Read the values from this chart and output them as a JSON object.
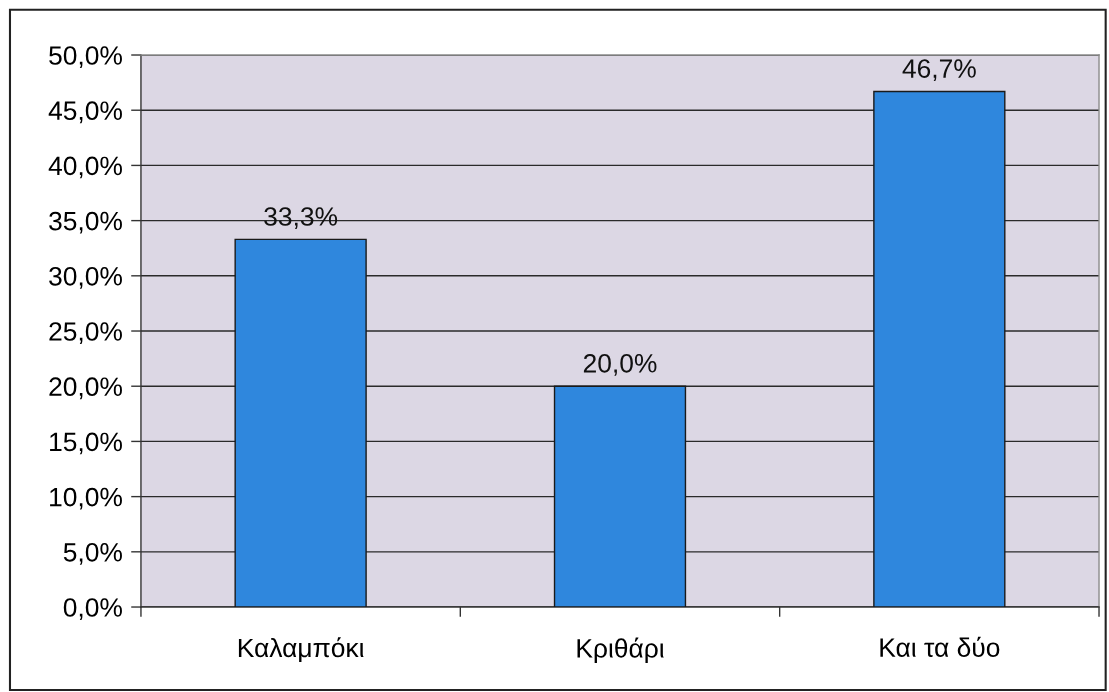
{
  "chart_data": {
    "type": "bar",
    "categories": [
      "Καλαμπόκι",
      "Κριθάρι",
      "Και τα δύο"
    ],
    "values": [
      33.3,
      20.0,
      46.7
    ],
    "color": "#2f87dd",
    "value_labels": [
      "33,3%",
      "20,0%",
      "46,7%"
    ],
    "ylim": [
      0,
      50
    ],
    "yticks": [
      {
        "value": 0,
        "label": "0,0%"
      },
      {
        "value": 5,
        "label": "5,0%"
      },
      {
        "value": 10,
        "label": "10,0%"
      },
      {
        "value": 15,
        "label": "15,0%"
      },
      {
        "value": 20,
        "label": "20,0%"
      },
      {
        "value": 25,
        "label": "25,0%"
      },
      {
        "value": 30,
        "label": "30,0%"
      },
      {
        "value": 35,
        "label": "35,0%"
      },
      {
        "value": 40,
        "label": "40,0%"
      },
      {
        "value": 45,
        "label": "45,0%"
      },
      {
        "value": 50,
        "label": "50,0%"
      }
    ],
    "grid": "y"
  }
}
